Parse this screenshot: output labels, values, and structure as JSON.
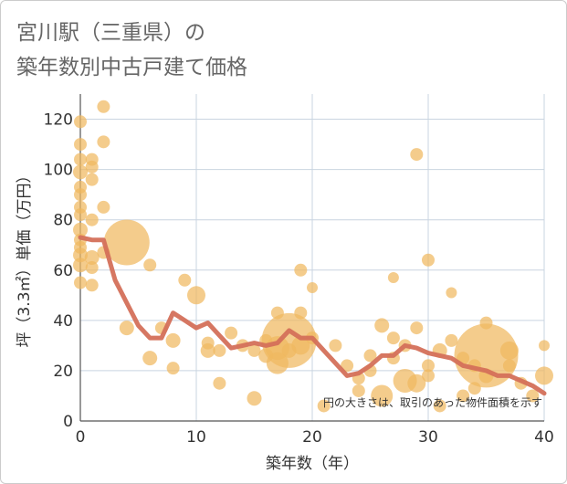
{
  "title_lines": [
    "宮川駅（三重県）の",
    "築年数別中古戸建て価格"
  ],
  "chart_data": {
    "type": "scatter",
    "title": "宮川駅（三重県）の築年数別中古戸建て価格",
    "xlabel": "築年数（年）",
    "ylabel": "坪（3.3㎡）単価（万円）",
    "xlim": [
      0,
      40
    ],
    "ylim": [
      0,
      130
    ],
    "x_ticks": [
      0,
      10,
      20,
      30,
      40
    ],
    "y_ticks": [
      0,
      20,
      40,
      60,
      80,
      100,
      120
    ],
    "grid": true,
    "note": "円の大きさは、取引のあった物件面積を示す",
    "colors": {
      "bubble": "#f0b860",
      "trend": "#d4705a",
      "grid": "#c9d4e0",
      "axis": "#555555"
    },
    "bubbles": [
      {
        "x": 0,
        "y": 119,
        "s": 7
      },
      {
        "x": 0,
        "y": 110,
        "s": 7
      },
      {
        "x": 0,
        "y": 104,
        "s": 7
      },
      {
        "x": 0,
        "y": 99,
        "s": 8
      },
      {
        "x": 0,
        "y": 93,
        "s": 7
      },
      {
        "x": 0,
        "y": 90,
        "s": 7
      },
      {
        "x": 0,
        "y": 85,
        "s": 7
      },
      {
        "x": 0,
        "y": 82,
        "s": 7
      },
      {
        "x": 0,
        "y": 76,
        "s": 8
      },
      {
        "x": 0,
        "y": 72,
        "s": 7
      },
      {
        "x": 0,
        "y": 69,
        "s": 7
      },
      {
        "x": 0,
        "y": 66,
        "s": 8
      },
      {
        "x": 0,
        "y": 62,
        "s": 8
      },
      {
        "x": 0,
        "y": 55,
        "s": 7
      },
      {
        "x": 1,
        "y": 104,
        "s": 7
      },
      {
        "x": 1,
        "y": 101,
        "s": 7
      },
      {
        "x": 1,
        "y": 96,
        "s": 7
      },
      {
        "x": 1,
        "y": 80,
        "s": 7
      },
      {
        "x": 1,
        "y": 65,
        "s": 8
      },
      {
        "x": 1,
        "y": 61,
        "s": 7
      },
      {
        "x": 1,
        "y": 54,
        "s": 7
      },
      {
        "x": 2,
        "y": 125,
        "s": 7
      },
      {
        "x": 2,
        "y": 111,
        "s": 7
      },
      {
        "x": 2,
        "y": 85,
        "s": 7
      },
      {
        "x": 2,
        "y": 67,
        "s": 7
      },
      {
        "x": 4,
        "y": 71,
        "s": 25
      },
      {
        "x": 4,
        "y": 37,
        "s": 8
      },
      {
        "x": 6,
        "y": 62,
        "s": 7
      },
      {
        "x": 6,
        "y": 25,
        "s": 8
      },
      {
        "x": 7,
        "y": 37,
        "s": 7
      },
      {
        "x": 8,
        "y": 32,
        "s": 8
      },
      {
        "x": 8,
        "y": 21,
        "s": 7
      },
      {
        "x": 9,
        "y": 56,
        "s": 7
      },
      {
        "x": 10,
        "y": 50,
        "s": 10
      },
      {
        "x": 11,
        "y": 31,
        "s": 7
      },
      {
        "x": 11,
        "y": 28,
        "s": 8
      },
      {
        "x": 12,
        "y": 28,
        "s": 7
      },
      {
        "x": 12,
        "y": 15,
        "s": 7
      },
      {
        "x": 13,
        "y": 35,
        "s": 7
      },
      {
        "x": 14,
        "y": 30,
        "s": 7
      },
      {
        "x": 15,
        "y": 28,
        "s": 7
      },
      {
        "x": 15,
        "y": 9,
        "s": 8
      },
      {
        "x": 16,
        "y": 32,
        "s": 7
      },
      {
        "x": 16,
        "y": 26,
        "s": 8
      },
      {
        "x": 17,
        "y": 43,
        "s": 7
      },
      {
        "x": 17,
        "y": 29,
        "s": 13
      },
      {
        "x": 17,
        "y": 23,
        "s": 12
      },
      {
        "x": 18,
        "y": 32,
        "s": 30
      },
      {
        "x": 18,
        "y": 28,
        "s": 8
      },
      {
        "x": 19,
        "y": 60,
        "s": 7
      },
      {
        "x": 19,
        "y": 43,
        "s": 7
      },
      {
        "x": 19,
        "y": 30,
        "s": 10
      },
      {
        "x": 20,
        "y": 53,
        "s": 6
      },
      {
        "x": 20,
        "y": 33,
        "s": 7
      },
      {
        "x": 21,
        "y": 6,
        "s": 7
      },
      {
        "x": 22,
        "y": 30,
        "s": 7
      },
      {
        "x": 23,
        "y": 22,
        "s": 7
      },
      {
        "x": 24,
        "y": 17,
        "s": 7
      },
      {
        "x": 24,
        "y": 12,
        "s": 7
      },
      {
        "x": 25,
        "y": 26,
        "s": 7
      },
      {
        "x": 25,
        "y": 20,
        "s": 7
      },
      {
        "x": 26,
        "y": 38,
        "s": 8
      },
      {
        "x": 26,
        "y": 10,
        "s": 12
      },
      {
        "x": 27,
        "y": 57,
        "s": 6
      },
      {
        "x": 27,
        "y": 33,
        "s": 7
      },
      {
        "x": 27,
        "y": 25,
        "s": 7
      },
      {
        "x": 28,
        "y": 30,
        "s": 7
      },
      {
        "x": 28,
        "y": 16,
        "s": 13
      },
      {
        "x": 29,
        "y": 106,
        "s": 7
      },
      {
        "x": 29,
        "y": 37,
        "s": 7
      },
      {
        "x": 29,
        "y": 15,
        "s": 10
      },
      {
        "x": 30,
        "y": 64,
        "s": 7
      },
      {
        "x": 30,
        "y": 22,
        "s": 7
      },
      {
        "x": 30,
        "y": 18,
        "s": 7
      },
      {
        "x": 31,
        "y": 28,
        "s": 8
      },
      {
        "x": 31,
        "y": 6,
        "s": 7
      },
      {
        "x": 32,
        "y": 51,
        "s": 6
      },
      {
        "x": 32,
        "y": 32,
        "s": 7
      },
      {
        "x": 33,
        "y": 25,
        "s": 7
      },
      {
        "x": 33,
        "y": 10,
        "s": 7
      },
      {
        "x": 34,
        "y": 22,
        "s": 7
      },
      {
        "x": 34,
        "y": 13,
        "s": 7
      },
      {
        "x": 35,
        "y": 39,
        "s": 7
      },
      {
        "x": 35,
        "y": 26,
        "s": 35
      },
      {
        "x": 35,
        "y": 18,
        "s": 8
      },
      {
        "x": 37,
        "y": 28,
        "s": 10
      },
      {
        "x": 37,
        "y": 22,
        "s": 7
      },
      {
        "x": 38,
        "y": 15,
        "s": 7
      },
      {
        "x": 39,
        "y": 10,
        "s": 7
      },
      {
        "x": 40,
        "y": 30,
        "s": 6
      },
      {
        "x": 40,
        "y": 18,
        "s": 10
      }
    ],
    "trend": [
      {
        "x": 0,
        "y": 73
      },
      {
        "x": 1,
        "y": 72
      },
      {
        "x": 2,
        "y": 72
      },
      {
        "x": 3,
        "y": 56
      },
      {
        "x": 4,
        "y": 47
      },
      {
        "x": 5,
        "y": 38
      },
      {
        "x": 6,
        "y": 33
      },
      {
        "x": 7,
        "y": 33
      },
      {
        "x": 8,
        "y": 43
      },
      {
        "x": 9,
        "y": 40
      },
      {
        "x": 10,
        "y": 37
      },
      {
        "x": 11,
        "y": 39
      },
      {
        "x": 12,
        "y": 34
      },
      {
        "x": 13,
        "y": 29
      },
      {
        "x": 14,
        "y": 30
      },
      {
        "x": 15,
        "y": 31
      },
      {
        "x": 16,
        "y": 30
      },
      {
        "x": 17,
        "y": 31
      },
      {
        "x": 18,
        "y": 36
      },
      {
        "x": 19,
        "y": 33
      },
      {
        "x": 20,
        "y": 33
      },
      {
        "x": 21,
        "y": 28
      },
      {
        "x": 22,
        "y": 23
      },
      {
        "x": 23,
        "y": 18
      },
      {
        "x": 24,
        "y": 19
      },
      {
        "x": 25,
        "y": 22
      },
      {
        "x": 26,
        "y": 26
      },
      {
        "x": 27,
        "y": 26
      },
      {
        "x": 28,
        "y": 30
      },
      {
        "x": 29,
        "y": 29
      },
      {
        "x": 30,
        "y": 27
      },
      {
        "x": 31,
        "y": 26
      },
      {
        "x": 32,
        "y": 25
      },
      {
        "x": 33,
        "y": 22
      },
      {
        "x": 34,
        "y": 21
      },
      {
        "x": 35,
        "y": 20
      },
      {
        "x": 36,
        "y": 18
      },
      {
        "x": 37,
        "y": 18
      },
      {
        "x": 38,
        "y": 16
      },
      {
        "x": 39,
        "y": 14
      },
      {
        "x": 40,
        "y": 11
      }
    ]
  }
}
